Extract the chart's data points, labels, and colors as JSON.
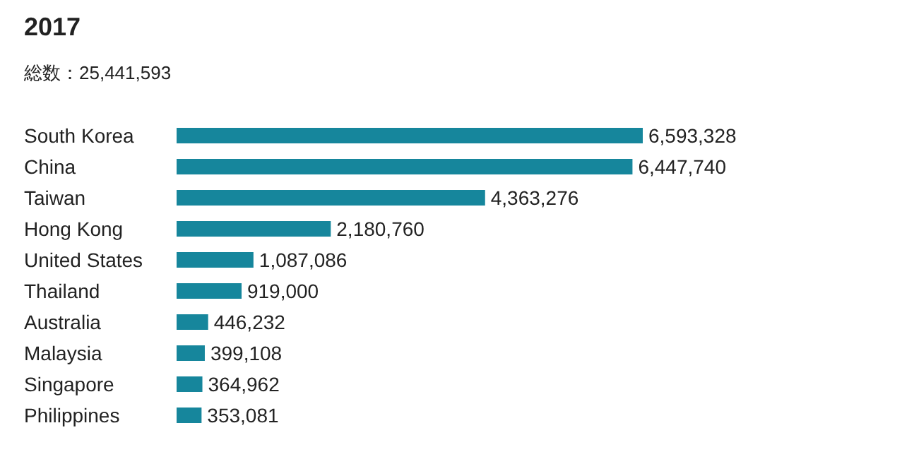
{
  "chart_data": {
    "type": "bar",
    "orientation": "horizontal",
    "title": "2017",
    "subtitle": "総数：25,441,593",
    "categories": [
      "South Korea",
      "China",
      "Taiwan",
      "Hong Kong",
      "United States",
      "Thailand",
      "Australia",
      "Malaysia",
      "Singapore",
      "Philippines"
    ],
    "values": [
      6593328,
      6447740,
      4363276,
      2180760,
      1087086,
      919000,
      446232,
      399108,
      364962,
      353081
    ],
    "value_labels": [
      "6,593,328",
      "6,447,740",
      "4,363,276",
      "2,180,760",
      "1,087,086",
      "919,000",
      "446,232",
      "399,108",
      "364,962",
      "353,081"
    ],
    "color": "#16869c"
  }
}
